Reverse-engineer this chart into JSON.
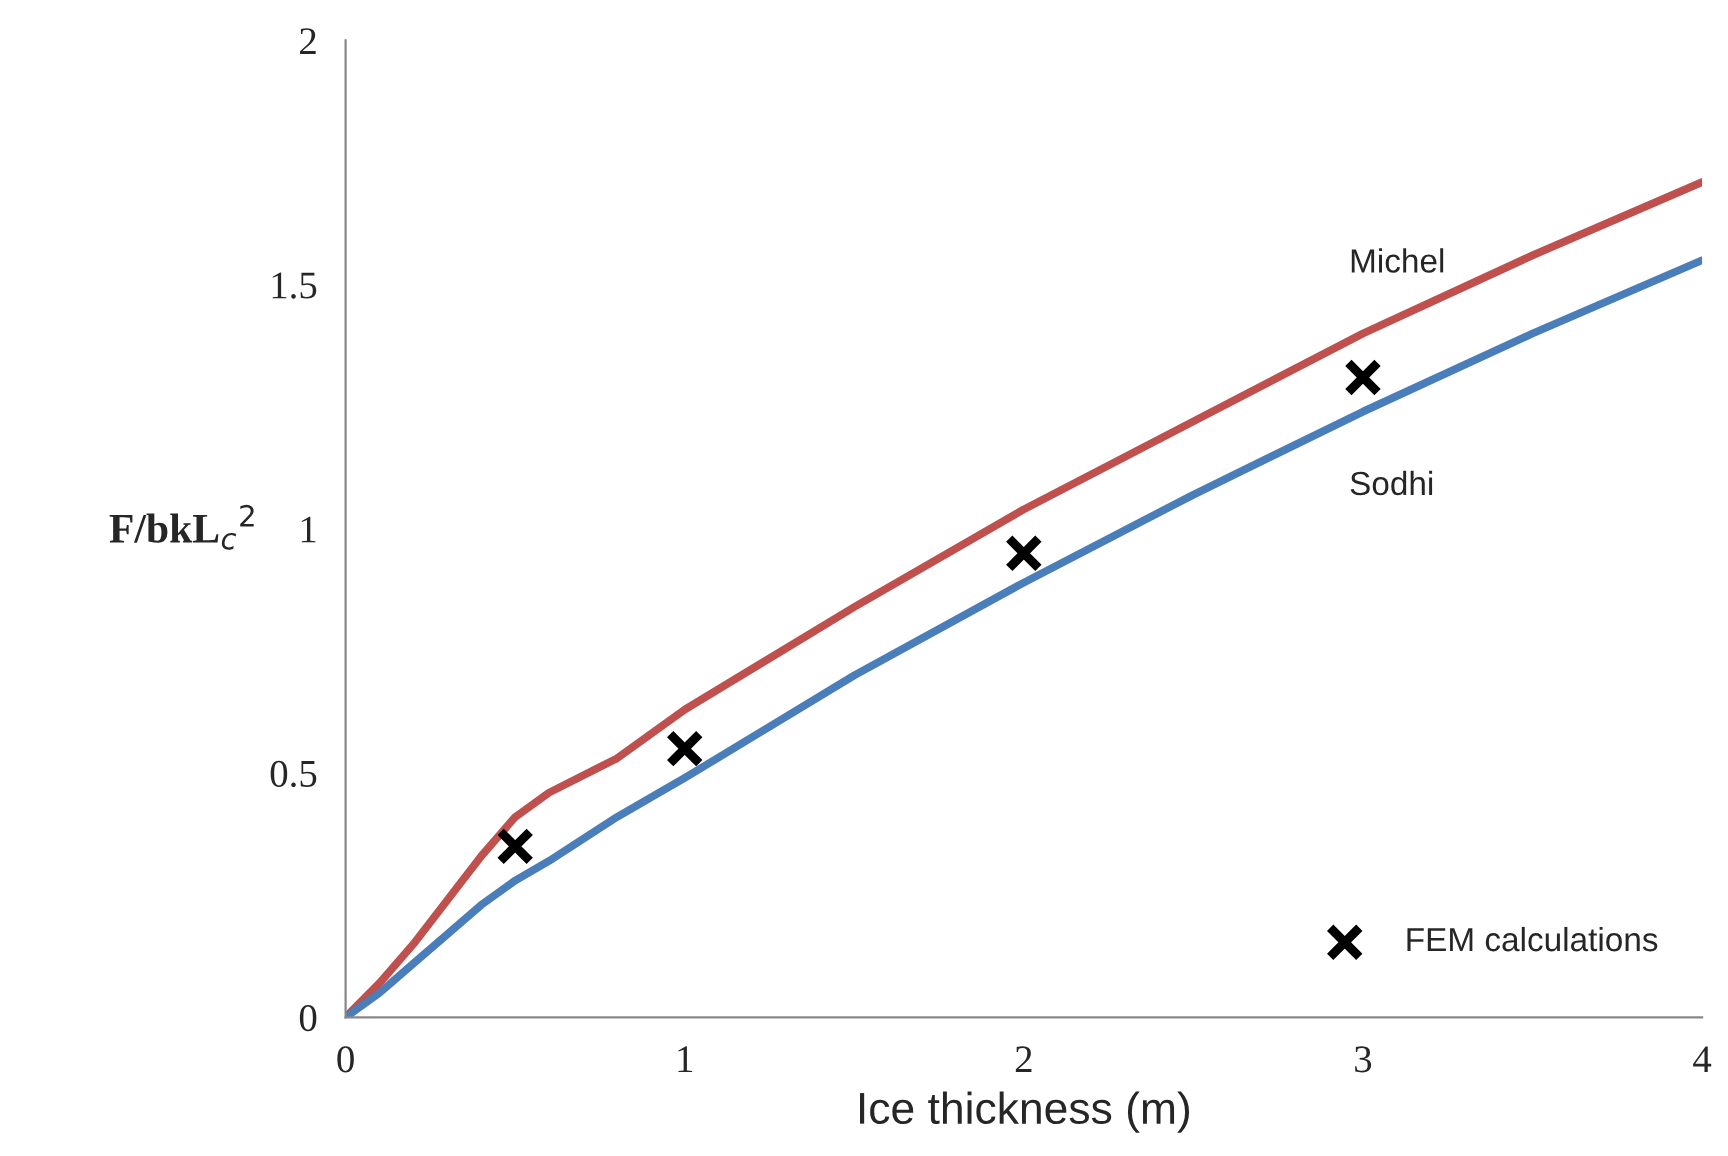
{
  "chart_data": {
    "type": "line",
    "xlabel": "Ice thickness (m)",
    "ylabel": "F/bkL$_{c}$$^{2}$",
    "xlim": [
      0,
      4
    ],
    "xticks": [
      0,
      1,
      2,
      3,
      4
    ],
    "ylim": [
      0,
      2
    ],
    "yticks": [
      0,
      0.5,
      1,
      1.5,
      2
    ],
    "grid": false,
    "legend": "bottom right",
    "series": [
      {
        "name": "Michel",
        "color": "#c0504d",
        "x": [
          0,
          0.1,
          0.2,
          0.3,
          0.4,
          0.5,
          0.6,
          0.8,
          1,
          1.5,
          2,
          2.5,
          3,
          3.5,
          4
        ],
        "values": [
          0,
          0.07,
          0.15,
          0.24,
          0.33,
          0.41,
          0.46,
          0.53,
          0.63,
          0.84,
          1.04,
          1.22,
          1.4,
          1.56,
          1.71
        ]
      },
      {
        "name": "Sodhi",
        "color": "#4a7ebb",
        "x": [
          0,
          0.1,
          0.2,
          0.3,
          0.4,
          0.5,
          0.6,
          0.8,
          1,
          1.5,
          2,
          2.5,
          3,
          3.5,
          4
        ],
        "values": [
          0,
          0.05,
          0.11,
          0.17,
          0.23,
          0.28,
          0.32,
          0.41,
          0.49,
          0.7,
          0.89,
          1.07,
          1.24,
          1.4,
          1.55
        ]
      },
      {
        "name": "FEM calculations",
        "type": "scatter",
        "marker": "cross",
        "color": "#000000",
        "x": [
          0.5,
          1,
          2,
          3
        ],
        "values": [
          0.35,
          0.55,
          0.95,
          1.31
        ]
      }
    ]
  }
}
